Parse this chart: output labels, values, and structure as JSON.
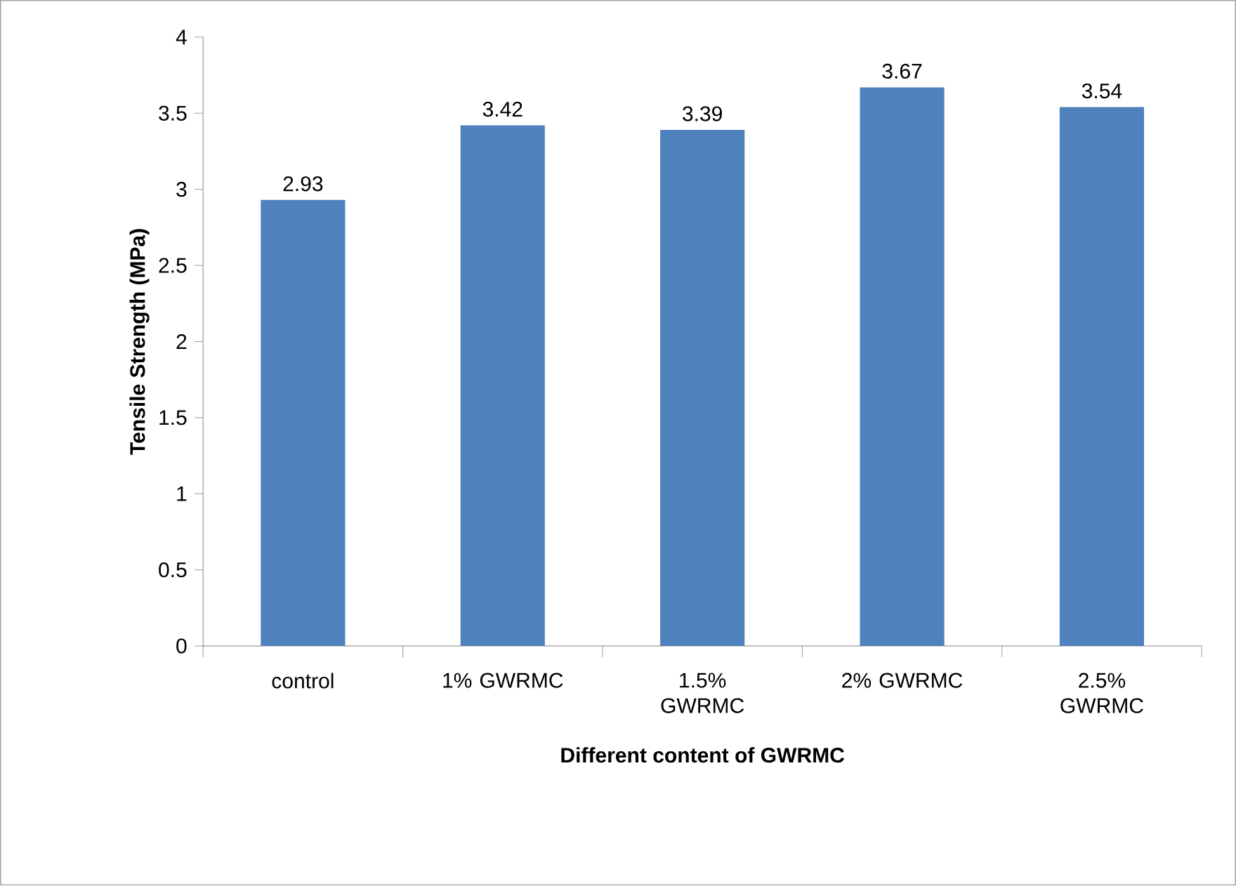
{
  "chart_data": {
    "type": "bar",
    "xlabel": "Different content of GWRMC",
    "ylabel": "Tensile Strength (MPa)",
    "categories": [
      "control",
      "1% GWRMC",
      "1.5% GWRMC",
      "2% GWRMC",
      "2.5% GWRMC"
    ],
    "values": [
      2.93,
      3.42,
      3.39,
      3.67,
      3.54
    ],
    "color": "#4f81bd",
    "ylim": [
      0,
      4
    ],
    "yticks": [
      0,
      0.5,
      1,
      1.5,
      2,
      2.5,
      3,
      3.5,
      4
    ],
    "data_labels": true,
    "grid": false
  }
}
